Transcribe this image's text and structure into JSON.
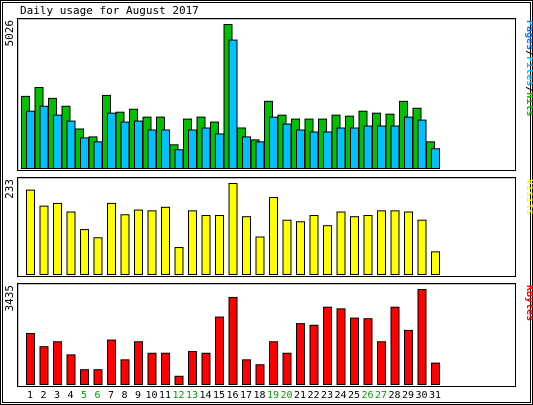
{
  "chart_data": {
    "type": "bar",
    "title": "Daily usage for August 2017",
    "categories": [
      "1",
      "2",
      "3",
      "4",
      "5",
      "6",
      "7",
      "8",
      "9",
      "10",
      "11",
      "12",
      "13",
      "14",
      "15",
      "16",
      "17",
      "18",
      "19",
      "20",
      "21",
      "22",
      "23",
      "24",
      "25",
      "26",
      "27",
      "28",
      "29",
      "30",
      "31"
    ],
    "weekend_days": [
      "5",
      "6",
      "12",
      "13",
      "19",
      "20",
      "26",
      "27"
    ],
    "panels": [
      {
        "name": "pages-files-hits",
        "max_label": "5026",
        "ylim": [
          0,
          5026
        ],
        "legend": [
          {
            "text": "Pages",
            "color": "#0080ff"
          },
          {
            "text": "Files",
            "color": "#00c0ff"
          },
          {
            "text": "Hits",
            "color": "#00c000"
          }
        ],
        "series": [
          {
            "name": "Hits",
            "color": "#00c000",
            "values": [
              2517,
              2827,
              2448,
              2172,
              1379,
              1103,
              2551,
              1965,
              2068,
              1793,
              1793,
              827,
              1724,
              1793,
              1620,
              5026,
              1414,
              1000,
              2344,
              1862,
              1724,
              1724,
              1724,
              1862,
              1827,
              2000,
              1931,
              1896,
              2344,
              2103,
              931
            ]
          },
          {
            "name": "Files",
            "color": "#00c0ff",
            "values": [
              2000,
              2172,
              1862,
              1655,
              1069,
              931,
              1931,
              1620,
              1655,
              1344,
              1344,
              655,
              1344,
              1413,
              1206,
              4482,
              1103,
              931,
              1793,
              1551,
              1344,
              1275,
              1275,
              1413,
              1413,
              1482,
              1482,
              1482,
              1793,
              1689,
              689
            ]
          }
        ]
      },
      {
        "name": "visits",
        "max_label": "233",
        "ylim": [
          0,
          233
        ],
        "legend": [
          {
            "text": "Visits",
            "color": "#ffff00"
          }
        ],
        "series": [
          {
            "name": "Visits",
            "color": "#ffff00",
            "values": [
              216,
              175,
              182,
              160,
              115,
              94,
              182,
              153,
              165,
              163,
              172,
              69,
              163,
              151,
              151,
              233,
              148,
              96,
              197,
              139,
              135,
              151,
              125,
              160,
              148,
              151,
              163,
              163,
              160,
              139,
              58
            ]
          }
        ]
      },
      {
        "name": "kbytes",
        "max_label": "3435",
        "ylim": [
          0,
          3435
        ],
        "legend": [
          {
            "text": "KBytes",
            "color": "#ff0000"
          }
        ],
        "series": [
          {
            "name": "KBytes",
            "color": "#ff0000",
            "values": [
              1844,
              1368,
              1546,
              1071,
              535,
              535,
              1606,
              892,
              1546,
              1130,
              1130,
              297,
              1190,
              1130,
              2438,
              3148,
              892,
              714,
              1546,
              1130,
              2201,
              2141,
              2795,
              2736,
              2401,
              2379,
              1546,
              2795,
              1955,
              3435,
              774
            ]
          }
        ]
      }
    ]
  }
}
